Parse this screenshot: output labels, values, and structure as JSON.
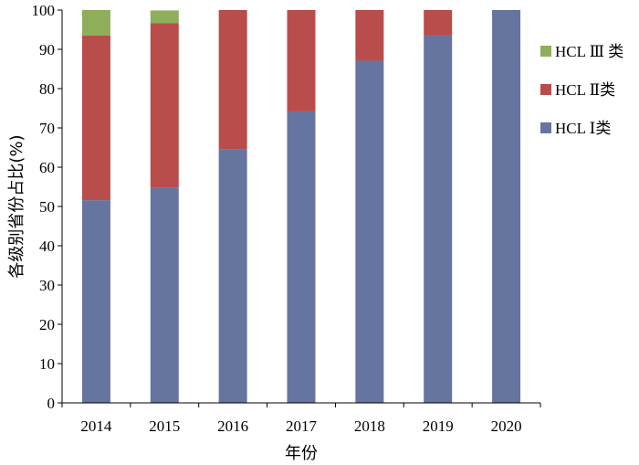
{
  "chart_data": {
    "type": "bar",
    "stacked": true,
    "categories": [
      "2014",
      "2015",
      "2016",
      "2017",
      "2018",
      "2019",
      "2020"
    ],
    "series": [
      {
        "name": "HCL Ⅰ类",
        "color": "#6675A0",
        "values": [
          51.6,
          54.8,
          64.5,
          74.2,
          87.1,
          93.5,
          100
        ]
      },
      {
        "name": "HCL Ⅱ类",
        "color": "#B84D4B",
        "values": [
          41.9,
          41.9,
          35.5,
          25.8,
          12.9,
          6.5,
          0
        ]
      },
      {
        "name": "HCL Ⅲ 类",
        "color": "#8FAE5A",
        "values": [
          6.5,
          3.2,
          0,
          0,
          0,
          0,
          0
        ]
      }
    ],
    "xlabel": "年份",
    "ylabel": "各级别省份占比(%)",
    "ylim": [
      0,
      100
    ],
    "yticks": [
      0,
      10,
      20,
      30,
      40,
      50,
      60,
      70,
      80,
      90,
      100
    ],
    "grid": false,
    "legend_position": "right",
    "legend_order": [
      "HCL Ⅲ 类",
      "HCL Ⅱ类",
      "HCL Ⅰ类"
    ]
  }
}
